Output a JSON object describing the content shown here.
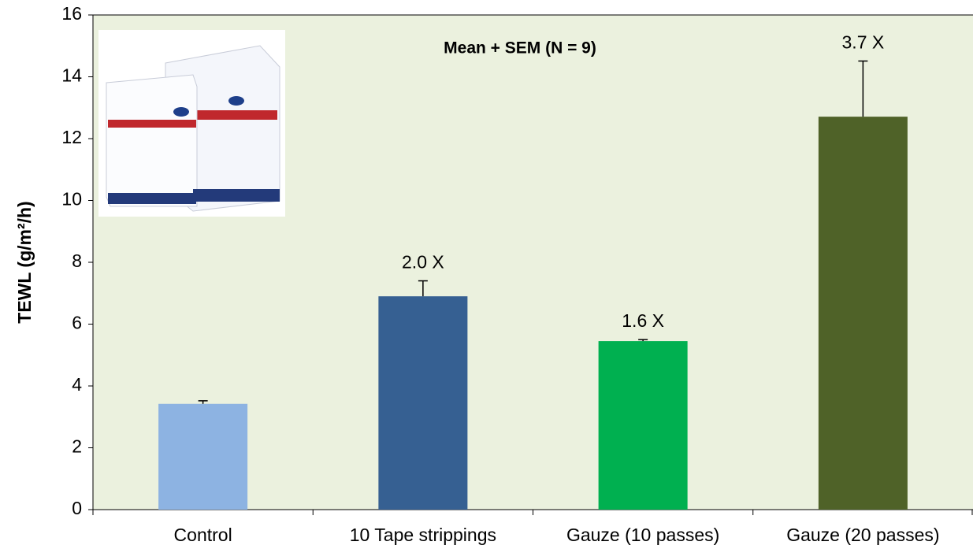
{
  "chart_data": {
    "type": "bar",
    "title": "Mean + SEM (N = 9)",
    "y_label": "TEWL (g/m²/h)",
    "categories": [
      "Control",
      "10 Tape strippings",
      "Gauze (10 passes)",
      "Gauze (20 passes)"
    ],
    "values": [
      3.42,
      6.9,
      5.45,
      12.71
    ],
    "errors": [
      0.1,
      0.5,
      0.05,
      1.8
    ],
    "colors": [
      "#8db3e2",
      "#366092",
      "#00b050",
      "#4f6228"
    ],
    "annotations": [
      null,
      "2.0 X",
      "1.6 X",
      "3.7 X"
    ],
    "ylim": [
      0,
      16
    ],
    "yticks": [
      0,
      2,
      4,
      6,
      8,
      10,
      12,
      14,
      16
    ],
    "plot_background": "#ebf1de"
  }
}
